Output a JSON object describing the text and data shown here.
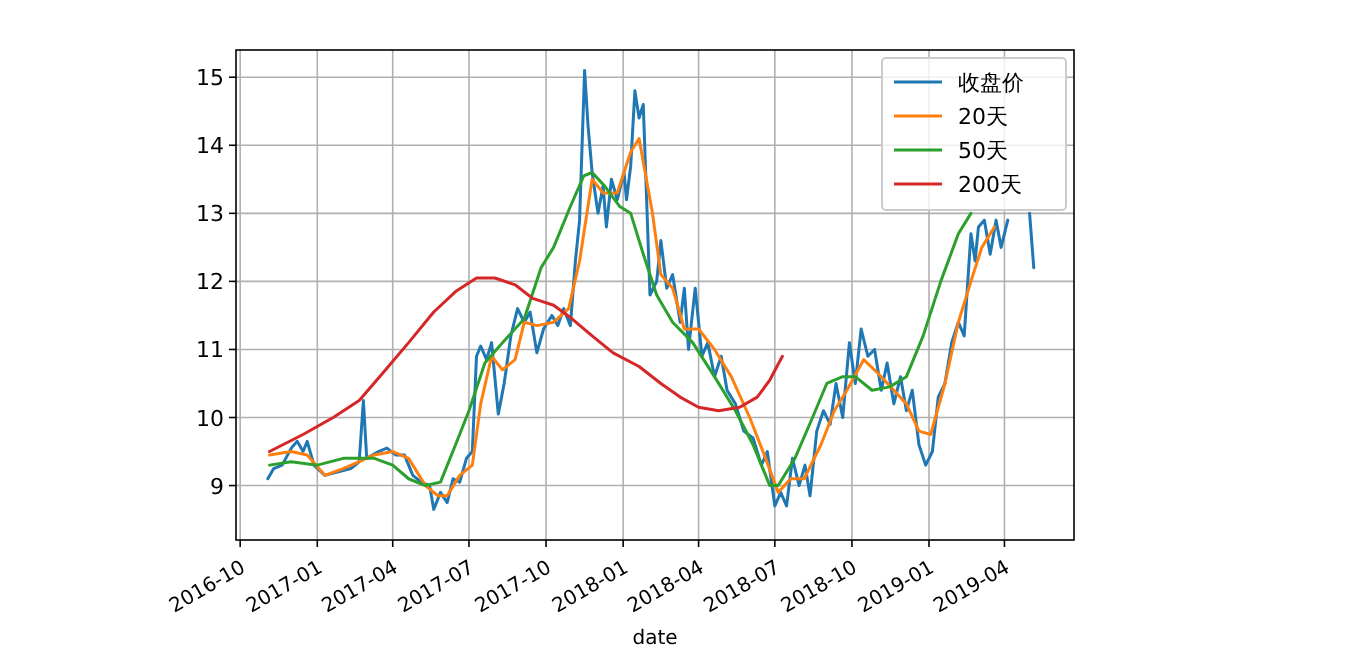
{
  "chart_data": {
    "type": "line",
    "xlabel": "date",
    "xlim": [
      "2016-09-26",
      "2019-06-23"
    ],
    "ylim": [
      8.2,
      15.4
    ],
    "xticks": [
      "2016-10",
      "2017-01",
      "2017-04",
      "2017-07",
      "2017-10",
      "2018-01",
      "2018-04",
      "2018-07",
      "2018-10",
      "2019-01",
      "2019-04"
    ],
    "yticks": [
      9,
      10,
      11,
      12,
      13,
      14,
      15
    ],
    "grid": true,
    "legend": "top right",
    "marker": "none",
    "line_style": "solid",
    "series": [
      {
        "name": "收盘价",
        "color": "#1f77b4",
        "x": [
          "2016-11-03",
          "2016-11-10",
          "2016-11-20",
          "2016-12-01",
          "2016-12-08",
          "2016-12-15",
          "2016-12-20",
          "2016-12-28",
          "2017-01-10",
          "2017-01-25",
          "2017-02-10",
          "2017-02-20",
          "2017-02-25",
          "2017-03-01",
          "2017-03-15",
          "2017-03-25",
          "2017-04-05",
          "2017-04-15",
          "2017-04-25",
          "2017-05-05",
          "2017-05-15",
          "2017-05-20",
          "2017-05-28",
          "2017-06-05",
          "2017-06-12",
          "2017-06-20",
          "2017-06-28",
          "2017-07-05",
          "2017-07-10",
          "2017-07-15",
          "2017-07-22",
          "2017-07-28",
          "2017-08-05",
          "2017-08-12",
          "2017-08-20",
          "2017-08-28",
          "2017-09-05",
          "2017-09-12",
          "2017-09-20",
          "2017-09-28",
          "2017-10-08",
          "2017-10-15",
          "2017-10-22",
          "2017-10-30",
          "2017-11-05",
          "2017-11-10",
          "2017-11-16",
          "2017-11-20",
          "2017-11-25",
          "2017-12-02",
          "2017-12-08",
          "2017-12-12",
          "2017-12-18",
          "2017-12-25",
          "2018-01-02",
          "2018-01-05",
          "2018-01-10",
          "2018-01-15",
          "2018-01-20",
          "2018-01-25",
          "2018-02-02",
          "2018-02-10",
          "2018-02-15",
          "2018-02-22",
          "2018-03-01",
          "2018-03-10",
          "2018-03-15",
          "2018-03-20",
          "2018-03-28",
          "2018-04-05",
          "2018-04-12",
          "2018-04-20",
          "2018-04-28",
          "2018-05-05",
          "2018-05-15",
          "2018-05-25",
          "2018-06-05",
          "2018-06-15",
          "2018-06-22",
          "2018-07-01",
          "2018-07-08",
          "2018-07-15",
          "2018-07-22",
          "2018-07-30",
          "2018-08-06",
          "2018-08-12",
          "2018-08-20",
          "2018-08-28",
          "2018-09-05",
          "2018-09-12",
          "2018-09-20",
          "2018-09-28",
          "2018-10-05",
          "2018-10-12",
          "2018-10-20",
          "2018-10-28",
          "2018-11-05",
          "2018-11-12",
          "2018-11-20",
          "2018-11-28",
          "2018-12-05",
          "2018-12-12",
          "2018-12-20",
          "2018-12-28",
          "2019-01-05",
          "2019-01-12",
          "2019-01-20",
          "2019-01-28",
          "2019-02-05",
          "2019-02-12",
          "2019-02-20",
          "2019-02-25",
          "2019-03-01",
          "2019-03-08",
          "2019-03-15",
          "2019-03-22",
          "2019-03-28",
          "2019-04-05",
          "2019-04-12",
          "2019-04-20",
          "2019-05-01",
          "2019-05-06"
        ],
        "values": [
          9.1,
          9.25,
          9.3,
          9.55,
          9.65,
          9.5,
          9.65,
          9.3,
          9.15,
          9.2,
          9.25,
          9.35,
          10.25,
          9.4,
          9.5,
          9.55,
          9.45,
          9.45,
          9.15,
          9.05,
          9.0,
          8.65,
          8.9,
          8.75,
          9.1,
          9.05,
          9.4,
          9.5,
          10.9,
          11.05,
          10.85,
          11.1,
          10.05,
          10.5,
          11.2,
          11.6,
          11.4,
          11.55,
          10.95,
          11.3,
          11.5,
          11.35,
          11.6,
          11.35,
          12.3,
          12.9,
          15.1,
          14.3,
          13.6,
          13.0,
          13.4,
          12.8,
          13.5,
          13.2,
          13.6,
          13.2,
          13.7,
          14.8,
          14.4,
          14.6,
          11.8,
          12.0,
          12.6,
          11.9,
          12.1,
          11.4,
          11.9,
          11.0,
          11.9,
          10.9,
          11.1,
          10.6,
          10.9,
          10.4,
          10.2,
          9.8,
          9.7,
          9.3,
          9.5,
          8.7,
          8.9,
          8.7,
          9.4,
          9.0,
          9.3,
          8.85,
          9.8,
          10.1,
          9.9,
          10.5,
          10.0,
          11.1,
          10.5,
          11.3,
          10.9,
          11.0,
          10.4,
          10.8,
          10.2,
          10.6,
          10.1,
          10.4,
          9.6,
          9.3,
          9.5,
          10.3,
          10.5,
          11.1,
          11.4,
          11.2,
          12.7,
          12.3,
          12.8,
          12.9,
          12.4,
          12.9,
          12.5,
          12.9,
          null,
          null,
          13.0,
          12.2
        ]
      },
      {
        "name": "20天",
        "color": "#ff7f0e",
        "x": [
          "2016-11-05",
          "2016-12-01",
          "2016-12-20",
          "2017-01-10",
          "2017-02-01",
          "2017-02-20",
          "2017-03-10",
          "2017-04-01",
          "2017-04-20",
          "2017-05-10",
          "2017-05-25",
          "2017-06-05",
          "2017-06-20",
          "2017-07-05",
          "2017-07-15",
          "2017-07-28",
          "2017-08-10",
          "2017-08-25",
          "2017-09-05",
          "2017-09-20",
          "2017-10-10",
          "2017-10-28",
          "2017-11-10",
          "2017-11-25",
          "2017-12-08",
          "2017-12-25",
          "2018-01-10",
          "2018-01-20",
          "2018-02-05",
          "2018-02-15",
          "2018-03-01",
          "2018-03-15",
          "2018-04-01",
          "2018-04-20",
          "2018-05-10",
          "2018-06-01",
          "2018-06-20",
          "2018-07-05",
          "2018-07-20",
          "2018-08-05",
          "2018-08-25",
          "2018-09-10",
          "2018-09-25",
          "2018-10-15",
          "2018-11-01",
          "2018-11-20",
          "2018-12-05",
          "2018-12-20",
          "2019-01-03",
          "2019-01-20",
          "2019-02-05",
          "2019-02-20",
          "2019-03-05",
          "2019-03-20"
        ],
        "values": [
          9.45,
          9.5,
          9.45,
          9.15,
          9.25,
          9.35,
          9.45,
          9.5,
          9.4,
          9.0,
          8.85,
          8.85,
          9.15,
          9.3,
          10.2,
          10.9,
          10.7,
          10.85,
          11.4,
          11.35,
          11.4,
          11.6,
          12.3,
          13.5,
          13.3,
          13.3,
          13.9,
          14.1,
          13.0,
          12.1,
          11.9,
          11.3,
          11.3,
          11.0,
          10.6,
          10.0,
          9.4,
          8.9,
          9.1,
          9.1,
          9.6,
          10.1,
          10.4,
          10.85,
          10.65,
          10.4,
          10.2,
          9.8,
          9.75,
          10.5,
          11.4,
          12.0,
          12.5,
          12.8
        ]
      },
      {
        "name": "50天",
        "color": "#2ca02c",
        "x": [
          "2016-11-05",
          "2016-12-01",
          "2017-01-01",
          "2017-02-01",
          "2017-03-10",
          "2017-04-01",
          "2017-04-20",
          "2017-05-10",
          "2017-05-28",
          "2017-06-15",
          "2017-07-01",
          "2017-07-20",
          "2017-08-10",
          "2017-09-05",
          "2017-09-25",
          "2017-10-10",
          "2017-10-30",
          "2017-11-15",
          "2017-11-25",
          "2017-12-10",
          "2017-12-28",
          "2018-01-10",
          "2018-01-25",
          "2018-02-10",
          "2018-03-01",
          "2018-03-25",
          "2018-04-20",
          "2018-05-15",
          "2018-06-05",
          "2018-06-25",
          "2018-07-05",
          "2018-07-25",
          "2018-08-15",
          "2018-09-01",
          "2018-09-20",
          "2018-10-05",
          "2018-10-25",
          "2018-11-15",
          "2018-12-05",
          "2018-12-25",
          "2019-01-15",
          "2019-02-05",
          "2019-02-20"
        ],
        "values": [
          9.3,
          9.35,
          9.3,
          9.4,
          9.4,
          9.3,
          9.1,
          9.0,
          9.05,
          9.6,
          10.1,
          10.8,
          11.1,
          11.45,
          12.2,
          12.5,
          13.1,
          13.55,
          13.6,
          13.4,
          13.1,
          13.0,
          12.4,
          11.8,
          11.4,
          11.1,
          10.6,
          10.1,
          9.6,
          9.0,
          9.0,
          9.4,
          10.0,
          10.5,
          10.6,
          10.6,
          10.4,
          10.45,
          10.6,
          11.2,
          12.0,
          12.7,
          13.0
        ]
      },
      {
        "name": "200天",
        "color": "#d62728",
        "x": [
          "2016-11-05",
          "2016-12-15",
          "2017-01-20",
          "2017-02-20",
          "2017-03-20",
          "2017-04-20",
          "2017-05-20",
          "2017-06-15",
          "2017-07-10",
          "2017-08-01",
          "2017-08-25",
          "2017-09-15",
          "2017-10-10",
          "2017-11-01",
          "2017-11-25",
          "2017-12-20",
          "2018-01-20",
          "2018-02-15",
          "2018-03-10",
          "2018-04-01",
          "2018-04-25",
          "2018-05-20",
          "2018-06-10",
          "2018-06-25",
          "2018-07-10"
        ],
        "values": [
          9.5,
          9.75,
          10.0,
          10.25,
          10.65,
          11.1,
          11.55,
          11.85,
          12.05,
          12.05,
          11.95,
          11.75,
          11.65,
          11.45,
          11.2,
          10.95,
          10.75,
          10.5,
          10.3,
          10.15,
          10.1,
          10.15,
          10.3,
          10.55,
          10.9
        ]
      }
    ]
  }
}
